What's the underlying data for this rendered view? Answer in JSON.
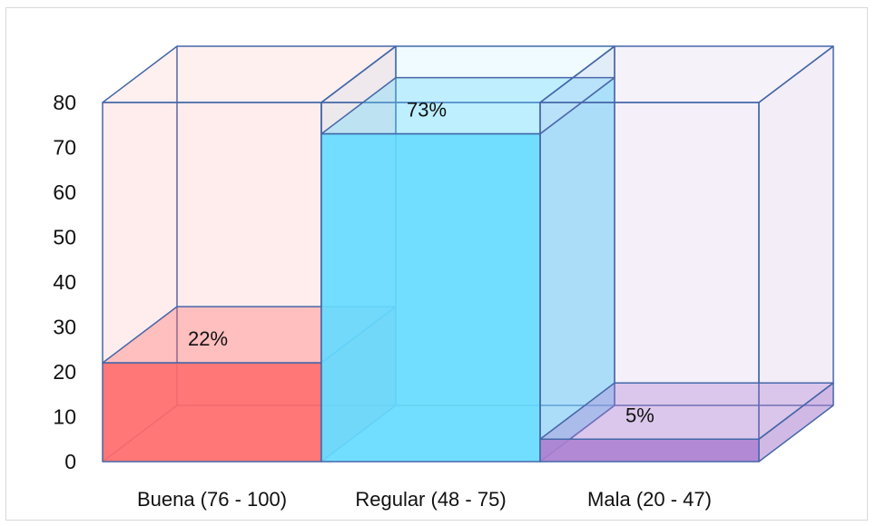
{
  "chart_data": {
    "type": "bar",
    "categories": [
      "Buena (76 - 100)",
      "Regular (48 - 75)",
      "Mala (20 - 47)"
    ],
    "values": [
      22,
      73,
      5
    ],
    "data_labels": [
      "22%",
      "73%",
      "5%"
    ],
    "yticks": [
      "0",
      "10",
      "20",
      "30",
      "40",
      "50",
      "60",
      "70",
      "80"
    ],
    "ylim": [
      0,
      80
    ],
    "colors": [
      "#ff6b6b",
      "#66dbff",
      "#ab7fd0"
    ],
    "grid": false,
    "legend": false
  }
}
